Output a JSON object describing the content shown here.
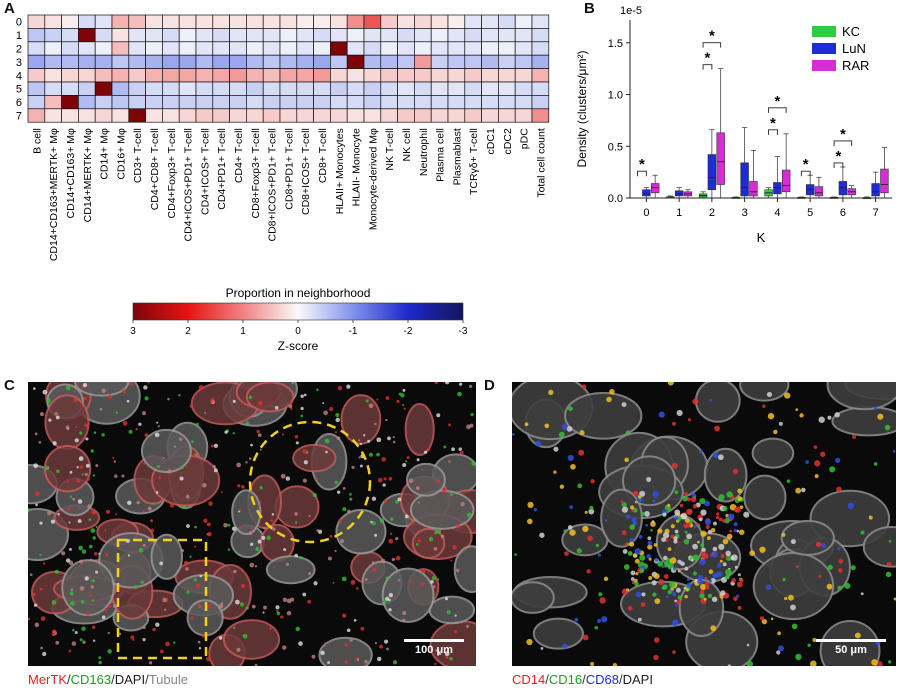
{
  "panels": {
    "A": "A",
    "B": "B",
    "C": "C",
    "D": "D"
  },
  "heatmap": {
    "row_labels": [
      "0",
      "1",
      "2",
      "3",
      "4",
      "5",
      "6",
      "7"
    ],
    "col_labels": [
      "B cell",
      "CD14+CD163+MERTK+ Mφ",
      "CD14+CD163+ Mφ",
      "CD14+MERTK+ Mφ",
      "CD14+ Mφ",
      "CD16+ Mφ",
      "CD3+ T-cell",
      "CD4+CD8+ T-cell",
      "CD4+Foxp3+ T-cell",
      "CD4+ICOS+PD1+ T-cell",
      "CD4+ICOS+ T-cell",
      "CD4+PD1+ T-cell",
      "CD4+ T-cell",
      "CD8+Foxp3+ T-cell",
      "CD8+ICOS+PD1+ T-cell",
      "CD8+PD1+ T-cell",
      "CD8+ICOS+ T-cell",
      "CD8+ T-cell",
      "HLAII+ Monocytes",
      "HLAII- Monocyte",
      "Monocyte-derived Mφ",
      "NK T-cell",
      "NK cell",
      "Neutrophil",
      "Plasma cell",
      "Plasmablast",
      "TCRγδ+ T-cell",
      "cDC1",
      "cDC2",
      "pDC",
      "Total cell count"
    ],
    "values": [
      [
        0.3,
        0.2,
        0.1,
        -0.3,
        -0.2,
        0.6,
        0.5,
        0.2,
        0.2,
        0.2,
        0.2,
        0.2,
        0.2,
        0.2,
        0.2,
        0.2,
        0.1,
        0.1,
        0.2,
        0.9,
        1.4,
        0.4,
        0.2,
        0.3,
        0.2,
        0.1,
        -0.2,
        -0.2,
        -0.3,
        -0.1,
        -0.2
      ],
      [
        -0.5,
        -0.4,
        -0.3,
        3.0,
        -0.3,
        0.2,
        -0.2,
        -0.2,
        -0.3,
        -0.1,
        -0.2,
        -0.3,
        -0.2,
        -0.2,
        -0.2,
        -0.1,
        -0.2,
        -0.3,
        -0.2,
        -0.1,
        -0.2,
        -0.2,
        -0.3,
        -0.2,
        -0.1,
        -0.2,
        -0.3,
        -0.2,
        -0.2,
        -0.2,
        -0.3
      ],
      [
        -0.3,
        -0.1,
        -0.3,
        -0.2,
        -0.1,
        0.5,
        -0.2,
        -0.1,
        -0.2,
        -0.1,
        -0.2,
        -0.2,
        -0.2,
        -0.1,
        -0.2,
        -0.1,
        -0.2,
        -0.1,
        3.0,
        -0.2,
        -0.3,
        -0.1,
        -0.2,
        -0.1,
        -0.2,
        -0.2,
        -0.2,
        -0.1,
        -0.1,
        -0.2,
        -0.3
      ],
      [
        -0.8,
        -0.6,
        -0.6,
        -0.7,
        -0.7,
        -0.5,
        -0.6,
        -0.7,
        -0.8,
        -0.8,
        -0.6,
        -0.8,
        -0.8,
        -0.6,
        -0.5,
        -0.6,
        -0.7,
        -0.8,
        -0.5,
        3.0,
        -0.6,
        -0.6,
        -0.5,
        0.8,
        -0.4,
        -0.5,
        -0.5,
        -0.6,
        -0.4,
        -0.5,
        -0.7
      ],
      [
        0.4,
        0.2,
        0.3,
        0.3,
        0.5,
        0.6,
        0.4,
        0.6,
        0.7,
        0.7,
        0.6,
        0.7,
        0.8,
        0.6,
        0.5,
        0.7,
        0.7,
        0.8,
        0.3,
        0.2,
        0.3,
        0.4,
        0.4,
        0.4,
        0.3,
        0.3,
        0.4,
        0.3,
        0.3,
        0.3,
        0.6
      ],
      [
        -0.5,
        -0.3,
        -0.3,
        -0.4,
        3.0,
        -0.6,
        -0.4,
        -0.3,
        -0.3,
        -0.2,
        -0.3,
        -0.3,
        -0.3,
        -0.4,
        -0.3,
        -0.3,
        -0.3,
        -0.3,
        -0.4,
        -0.3,
        -0.4,
        -0.3,
        -0.2,
        -0.3,
        -0.2,
        -0.2,
        -0.3,
        -0.2,
        -0.2,
        -0.3,
        -0.3
      ],
      [
        -0.4,
        0.5,
        3.0,
        -0.6,
        -0.4,
        -0.5,
        -0.4,
        -0.4,
        -0.4,
        -0.4,
        -0.4,
        -0.4,
        -0.4,
        -0.3,
        -0.4,
        -0.4,
        -0.4,
        -0.4,
        -0.3,
        -0.3,
        -0.4,
        -0.3,
        -0.3,
        -0.3,
        -0.3,
        -0.3,
        -0.3,
        -0.3,
        -0.3,
        -0.3,
        -0.4
      ],
      [
        0.6,
        0.2,
        0.2,
        0.2,
        0.3,
        0.2,
        3.0,
        0.2,
        0.2,
        0.3,
        0.4,
        0.4,
        0.3,
        0.3,
        0.4,
        0.3,
        0.3,
        0.3,
        0.3,
        0.2,
        0.2,
        0.3,
        0.4,
        0.4,
        0.3,
        0.3,
        0.4,
        0.3,
        0.3,
        0.3,
        0.9
      ]
    ],
    "colorbar": {
      "title": "Proportion in neighborhood",
      "ticks": [
        "3",
        "2",
        "1",
        "0",
        "-1",
        "-2",
        "-3"
      ],
      "tick_values": [
        3,
        2,
        1,
        0,
        -1,
        -2,
        -3
      ],
      "label": "Z-score"
    }
  },
  "chart_data": {
    "type": "box",
    "title": "",
    "exponent_label": "1e-5",
    "xlabel": "K",
    "ylabel": "Density (clusters/μm²)",
    "ylim": [
      0,
      1.72
    ],
    "ytick_values": [
      0,
      0.5,
      1.0,
      1.5
    ],
    "ytick_labels": [
      "0.0",
      "0.5",
      "1.0",
      "1.5"
    ],
    "categories": [
      "0",
      "1",
      "2",
      "3",
      "4",
      "5",
      "6",
      "7"
    ],
    "series": [
      {
        "name": "KC",
        "color": "#2ecc40",
        "boxes": [
          null,
          {
            "min": 0,
            "q1": 0.004,
            "median": 0.008,
            "q3": 0.012,
            "max": 0.02
          },
          {
            "min": 0,
            "q1": 0.01,
            "median": 0.025,
            "q3": 0.04,
            "max": 0.06
          },
          {
            "min": 0,
            "q1": 0,
            "median": 0.003,
            "q3": 0.006,
            "max": 0.01
          },
          {
            "min": 0,
            "q1": 0.02,
            "median": 0.05,
            "q3": 0.08,
            "max": 0.1
          },
          {
            "min": 0,
            "q1": 0,
            "median": 0.003,
            "q3": 0.006,
            "max": 0.01
          },
          {
            "min": 0,
            "q1": 0,
            "median": 0.003,
            "q3": 0.006,
            "max": 0.01
          },
          {
            "min": 0,
            "q1": 0,
            "median": 0.002,
            "q3": 0.004,
            "max": 0.01
          }
        ]
      },
      {
        "name": "LuN",
        "color": "#1f2bd6",
        "boxes": [
          {
            "min": 0,
            "q1": 0.02,
            "median": 0.04,
            "q3": 0.08,
            "max": 0.1
          },
          {
            "min": 0,
            "q1": 0.02,
            "median": 0.04,
            "q3": 0.07,
            "max": 0.1
          },
          {
            "min": 0,
            "q1": 0.08,
            "median": 0.2,
            "q3": 0.42,
            "max": 0.66
          },
          {
            "min": 0,
            "q1": 0.02,
            "median": 0.1,
            "q3": 0.34,
            "max": 0.68
          },
          {
            "min": 0,
            "q1": 0.04,
            "median": 0.1,
            "q3": 0.15,
            "max": 0.4
          },
          {
            "min": 0,
            "q1": 0.03,
            "median": 0.08,
            "q3": 0.13,
            "max": 0.22
          },
          {
            "min": 0,
            "q1": 0.03,
            "median": 0.1,
            "q3": 0.16,
            "max": 0.3
          },
          {
            "min": 0,
            "q1": 0.02,
            "median": 0.06,
            "q3": 0.14,
            "max": 0.25
          }
        ]
      },
      {
        "name": "RAR",
        "color": "#d62cd6",
        "boxes": [
          {
            "min": 0,
            "q1": 0.05,
            "median": 0.1,
            "q3": 0.14,
            "max": 0.22
          },
          {
            "min": 0,
            "q1": 0.02,
            "median": 0.04,
            "q3": 0.06,
            "max": 0.08
          },
          {
            "min": 0,
            "q1": 0.13,
            "median": 0.35,
            "q3": 0.63,
            "max": 1.25
          },
          {
            "min": 0,
            "q1": 0.02,
            "median": 0.06,
            "q3": 0.16,
            "max": 0.46
          },
          {
            "min": 0,
            "q1": 0.06,
            "median": 0.12,
            "q3": 0.27,
            "max": 0.62
          },
          {
            "min": 0,
            "q1": 0.02,
            "median": 0.05,
            "q3": 0.11,
            "max": 0.2
          },
          {
            "min": 0,
            "q1": 0.03,
            "median": 0.06,
            "q3": 0.09,
            "max": 0.12
          },
          {
            "min": 0,
            "q1": 0.05,
            "median": 0.13,
            "q3": 0.28,
            "max": 0.49
          }
        ]
      }
    ],
    "significance": [
      {
        "category": 0,
        "label": "*"
      },
      {
        "category": 2,
        "label": "*"
      },
      {
        "category": 2,
        "label": "*"
      },
      {
        "category": 4,
        "label": "*"
      },
      {
        "category": 4,
        "label": "*"
      },
      {
        "category": 5,
        "label": "*"
      },
      {
        "category": 6,
        "label": "*"
      },
      {
        "category": 6,
        "label": "*"
      }
    ],
    "legend_position": "top-right",
    "grid": false
  },
  "micrographs": {
    "C": {
      "scalebar": "100 μm",
      "caption": [
        {
          "text": "MerTK",
          "color": "#e02020"
        },
        {
          "text": "/",
          "color": "#333333"
        },
        {
          "text": "CD163",
          "color": "#18a018"
        },
        {
          "text": "/",
          "color": "#333333"
        },
        {
          "text": "DAPI",
          "color": "#222222"
        },
        {
          "text": "/",
          "color": "#333333"
        },
        {
          "text": "Tubule",
          "color": "#888888"
        }
      ]
    },
    "D": {
      "scalebar": "50 μm",
      "caption": [
        {
          "text": "CD14",
          "color": "#e02020"
        },
        {
          "text": "/",
          "color": "#333333"
        },
        {
          "text": "CD16",
          "color": "#18a018"
        },
        {
          "text": "/",
          "color": "#333333"
        },
        {
          "text": "CD68",
          "color": "#1f2bd6"
        },
        {
          "text": "/",
          "color": "#333333"
        },
        {
          "text": "DAPI",
          "color": "#222222"
        }
      ]
    }
  }
}
